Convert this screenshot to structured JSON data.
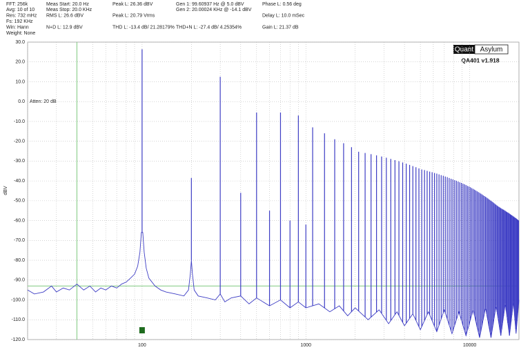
{
  "header": [
    [
      "FFT: 256k",
      "Avg: 10 of 10",
      "Res: 732 mHz",
      "Fs: 192 KHz",
      "Win: Hann",
      "Weight: None"
    ],
    [
      "Meas Start: 20.0 Hz",
      "Meas Stop: 20.0 KHz",
      "RMS L: 26.6 dBV",
      "N+D L: 12.9 dBV"
    ],
    [
      "Peak L: 26.36 dBV",
      "Peak L: 20.79 Vrms",
      "THD L: -13.4 dB/ 21.28179%"
    ],
    [
      "Gen 1: 99.60937 Hz @ 5.0  dBV",
      "Gen 2: 20.00024 KHz @ -14.1  dBV",
      "THD+N L: -27.4 dB/ 4.25354%"
    ],
    [
      "Phase L: 0.56 deg",
      "Delay L: 10.0 mSec",
      "Gain L: 21.37 dB"
    ]
  ],
  "branding": {
    "logo_left": "Quant",
    "logo_right": "Asylum",
    "version": "QA401 v1.918"
  },
  "chart_data": {
    "type": "line",
    "ylabel": "dBV",
    "annotation": "Atten: 20 dB",
    "xscale": "log",
    "xlim": [
      20,
      20000
    ],
    "ylim": [
      -120,
      30
    ],
    "xticks": [
      100,
      1000,
      10000
    ],
    "xminorticks": [
      20,
      30,
      40,
      50,
      60,
      70,
      80,
      90,
      200,
      300,
      400,
      500,
      600,
      700,
      800,
      900,
      2000,
      3000,
      4000,
      5000,
      6000,
      7000,
      8000,
      9000
    ],
    "yticks": [
      {
        "value": 30,
        "label": "30.0"
      },
      {
        "value": 20,
        "label": "20.0"
      },
      {
        "value": 10,
        "label": "10.0"
      },
      {
        "value": 0,
        "label": "0.0"
      },
      {
        "value": -10,
        "label": "-10.0"
      },
      {
        "value": -20,
        "label": "-20.0"
      },
      {
        "value": -30,
        "label": "-30.0"
      },
      {
        "value": -40,
        "label": "-40.0"
      },
      {
        "value": -50,
        "label": "-50.0"
      },
      {
        "value": -60,
        "label": "-60.0"
      },
      {
        "value": -70,
        "label": "-70.0"
      },
      {
        "value": -80,
        "label": "-80.0"
      },
      {
        "value": -90,
        "label": "-90.0"
      },
      {
        "value": -100,
        "label": "-100.0"
      },
      {
        "value": -110,
        "label": "-110.0"
      },
      {
        "value": -120,
        "label": "-120.0"
      }
    ],
    "grid": true,
    "ref_x": 40,
    "ref_y": -93,
    "marker_x": 100,
    "ref_color": "#7fc97f",
    "marker_color": "#1e6b1e",
    "color": "#3c3cc4",
    "series": [
      {
        "x": [
          20,
          22,
          25,
          28,
          30,
          33,
          36,
          40,
          44,
          48,
          52,
          56,
          60,
          65,
          70,
          75,
          80,
          85,
          90,
          94,
          97,
          99,
          101,
          103,
          106,
          110,
          120,
          130,
          140,
          160,
          180,
          192,
          197,
          200,
          203,
          208,
          220,
          250,
          280,
          300,
          320,
          350,
          400,
          450,
          500,
          600,
          700,
          800,
          900,
          1000,
          1200,
          1400,
          1600,
          1800,
          2000,
          2400,
          2800,
          3200,
          3600,
          4000,
          4500,
          5000,
          5600,
          6300,
          7000,
          7800,
          8600,
          9500,
          10500,
          11500,
          12500,
          13500,
          14500,
          15500,
          16500,
          17500,
          18500,
          19200,
          20000
        ],
        "values": [
          -95,
          -97,
          -96,
          -93,
          -96,
          -94,
          -95,
          -92,
          -95,
          -93,
          -96,
          -94,
          -95,
          -93,
          -94,
          -92,
          -91,
          -89,
          -87,
          -83,
          -76,
          -66,
          -66,
          -76,
          -84,
          -89,
          -93,
          -95,
          -96,
          -97,
          -98,
          -95,
          -87,
          -80,
          -87,
          -95,
          -98,
          -99,
          -100,
          -97,
          -101,
          -99,
          -98,
          -102,
          -99,
          -103,
          -100,
          -104,
          -101,
          -104,
          -102,
          -106,
          -103,
          -108,
          -104,
          -110,
          -105,
          -112,
          -106,
          -113,
          -107,
          -115,
          -106,
          -116,
          -105,
          -117,
          -106,
          -118,
          -105,
          -119,
          -104,
          -119,
          -103,
          -118,
          -102,
          -118,
          -101,
          -117,
          -100
        ]
      }
    ],
    "peaks": {
      "x": [
        100,
        200,
        300,
        400,
        500,
        600,
        700,
        800,
        900,
        1000,
        1100,
        1300,
        1500,
        1700,
        1900,
        2100,
        2300,
        2500,
        2700,
        2900,
        3100,
        3300,
        3500,
        3700,
        3900,
        4100,
        4300,
        4500,
        4700,
        4900,
        5100,
        5300,
        5500,
        5700,
        5900,
        6100,
        6300,
        6500,
        6700,
        6900,
        7100,
        7300,
        7500,
        7700,
        7900,
        8100,
        8300,
        8500,
        8700,
        8900,
        9100,
        9300,
        9500,
        9700,
        9900,
        10100,
        10300,
        10500,
        10700,
        10900,
        11100,
        11300,
        11500,
        11700,
        11900,
        12100,
        12300,
        12500,
        12700,
        12900,
        13100,
        13300,
        13500,
        13700,
        13900,
        14100,
        14300,
        14500,
        14700,
        14900,
        15100,
        15300,
        15500,
        15700,
        15900,
        16100,
        16300,
        16500,
        16700,
        16900,
        17100,
        17300,
        17500,
        17700,
        17900,
        18100,
        18300,
        18500,
        18700,
        18900,
        19100,
        19300,
        19500,
        19700,
        19900
      ],
      "values": [
        26.4,
        -38.5,
        12.5,
        -46,
        -5.5,
        -55,
        -5.5,
        -60,
        -7,
        -62,
        -13,
        -16,
        -19,
        -21,
        -23,
        -25.3,
        -25.9,
        -26.5,
        -27.1,
        -27.7,
        -28.3,
        -28.9,
        -29.5,
        -30.1,
        -30.7,
        -31.3,
        -31.9,
        -32.5,
        -33.1,
        -33.7,
        -34.2,
        -34.5,
        -34.9,
        -35.3,
        -35.6,
        -36,
        -36.3,
        -36.7,
        -37.1,
        -37.4,
        -37.8,
        -38.1,
        -38.5,
        -38.9,
        -39.2,
        -39.6,
        -39.9,
        -40.3,
        -40.7,
        -41,
        -41.4,
        -41.7,
        -42.1,
        -42.5,
        -42.8,
        -43.2,
        -43.6,
        -44,
        -44.4,
        -44.8,
        -45.2,
        -45.6,
        -46,
        -46.4,
        -46.8,
        -47.2,
        -47.6,
        -48,
        -48.4,
        -48.8,
        -49.2,
        -49.6,
        -50,
        -50.4,
        -50.8,
        -51.2,
        -51.6,
        -52,
        -52.4,
        -52.8,
        -53.1,
        -53.4,
        -53.7,
        -54,
        -54.3,
        -54.5,
        -54.8,
        -55.1,
        -55.4,
        -55.7,
        -55.9,
        -56.2,
        -56.5,
        -56.8,
        -57.1,
        -57.3,
        -57.6,
        -57.9,
        -58.2,
        -58.5,
        -58.7,
        -59,
        -59.3,
        -59.6,
        -59.9
      ]
    }
  }
}
